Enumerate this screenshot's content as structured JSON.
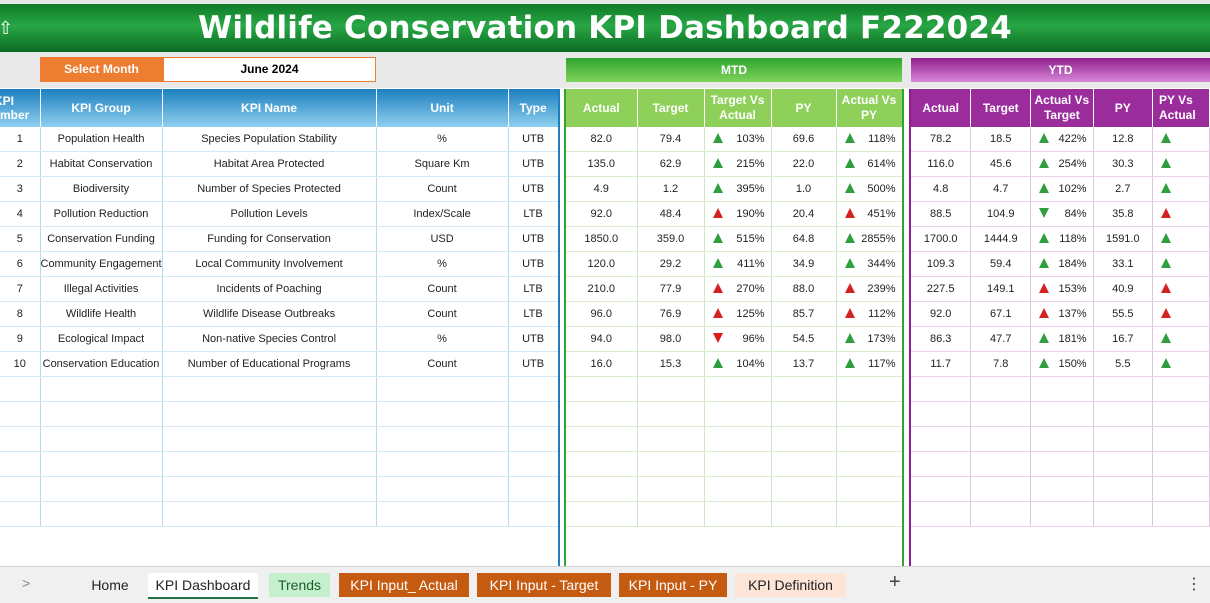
{
  "title": "Wildlife Conservation KPI Dashboard F222024",
  "controls": {
    "select_label": "Select Month",
    "select_value": "June 2024"
  },
  "sections": {
    "mtd": "MTD",
    "ytd": "YTD"
  },
  "left_headers": {
    "num": "KPI Number",
    "num_line1": "KPI",
    "num_line2": "Number",
    "group": "KPI Group",
    "name": "KPI Name",
    "unit": "Unit",
    "type": "Type"
  },
  "mtd_headers": {
    "actual": "Actual",
    "target": "Target",
    "tva_1": "Target Vs",
    "tva_2": "Actual",
    "avp_1": "Actual Vs",
    "avp_2": "PY",
    "py": "PY"
  },
  "ytd_headers": {
    "actual": "Actual",
    "target": "Target",
    "avt_1": "Actual Vs",
    "avt_2": "Target",
    "py": "PY",
    "pyva_1": "PY Vs",
    "pyva_2": "Actual"
  },
  "rows": [
    {
      "num": "1",
      "group": "Population Health",
      "name": "Species Population Stability",
      "unit": "%",
      "type": "UTB",
      "m_actual": "82.0",
      "m_target": "79.4",
      "m_tva": "103%",
      "m_tva_dir": "up",
      "m_py": "69.6",
      "m_avp": "118%",
      "m_avp_dir": "up",
      "y_actual": "78.2",
      "y_target": "18.5",
      "y_avt": "422%",
      "y_avt_dir": "up",
      "y_py": "12.8",
      "y_pva_dir": "up"
    },
    {
      "num": "2",
      "group": "Habitat Conservation",
      "name": "Habitat Area Protected",
      "unit": "Square Km",
      "type": "UTB",
      "m_actual": "135.0",
      "m_target": "62.9",
      "m_tva": "215%",
      "m_tva_dir": "up",
      "m_py": "22.0",
      "m_avp": "614%",
      "m_avp_dir": "up",
      "y_actual": "116.0",
      "y_target": "45.6",
      "y_avt": "254%",
      "y_avt_dir": "up",
      "y_py": "30.3",
      "y_pva_dir": "up"
    },
    {
      "num": "3",
      "group": "Biodiversity",
      "name": "Number of Species Protected",
      "unit": "Count",
      "type": "UTB",
      "m_actual": "4.9",
      "m_target": "1.2",
      "m_tva": "395%",
      "m_tva_dir": "up",
      "m_py": "1.0",
      "m_avp": "500%",
      "m_avp_dir": "up",
      "y_actual": "4.8",
      "y_target": "4.7",
      "y_avt": "102%",
      "y_avt_dir": "up",
      "y_py": "2.7",
      "y_pva_dir": "up"
    },
    {
      "num": "4",
      "group": "Pollution Reduction",
      "name": "Pollution Levels",
      "unit": "Index/Scale",
      "type": "LTB",
      "m_actual": "92.0",
      "m_target": "48.4",
      "m_tva": "190%",
      "m_tva_dir": "up-red",
      "m_py": "20.4",
      "m_avp": "451%",
      "m_avp_dir": "up-red",
      "y_actual": "88.5",
      "y_target": "104.9",
      "y_avt": "84%",
      "y_avt_dir": "down-green",
      "y_py": "35.8",
      "y_pva_dir": "up-red"
    },
    {
      "num": "5",
      "group": "Conservation Funding",
      "name": "Funding for Conservation",
      "unit": "USD",
      "type": "UTB",
      "m_actual": "1850.0",
      "m_target": "359.0",
      "m_tva": "515%",
      "m_tva_dir": "up",
      "m_py": "64.8",
      "m_avp": "2855%",
      "m_avp_dir": "up",
      "y_actual": "1700.0",
      "y_target": "1444.9",
      "y_avt": "118%",
      "y_avt_dir": "up",
      "y_py": "1591.0",
      "y_pva_dir": "up"
    },
    {
      "num": "6",
      "group": "Community Engagement",
      "name": "Local Community Involvement",
      "unit": "%",
      "type": "UTB",
      "m_actual": "120.0",
      "m_target": "29.2",
      "m_tva": "411%",
      "m_tva_dir": "up",
      "m_py": "34.9",
      "m_avp": "344%",
      "m_avp_dir": "up",
      "y_actual": "109.3",
      "y_target": "59.4",
      "y_avt": "184%",
      "y_avt_dir": "up",
      "y_py": "33.1",
      "y_pva_dir": "up"
    },
    {
      "num": "7",
      "group": "Illegal Activities",
      "name": "Incidents of Poaching",
      "unit": "Count",
      "type": "LTB",
      "m_actual": "210.0",
      "m_target": "77.9",
      "m_tva": "270%",
      "m_tva_dir": "up-red",
      "m_py": "88.0",
      "m_avp": "239%",
      "m_avp_dir": "up-red",
      "y_actual": "227.5",
      "y_target": "149.1",
      "y_avt": "153%",
      "y_avt_dir": "up-red",
      "y_py": "40.9",
      "y_pva_dir": "up-red"
    },
    {
      "num": "8",
      "group": "Wildlife Health",
      "name": "Wildlife Disease Outbreaks",
      "unit": "Count",
      "type": "LTB",
      "m_actual": "96.0",
      "m_target": "76.9",
      "m_tva": "125%",
      "m_tva_dir": "up-red",
      "m_py": "85.7",
      "m_avp": "112%",
      "m_avp_dir": "up-red",
      "y_actual": "92.0",
      "y_target": "67.1",
      "y_avt": "137%",
      "y_avt_dir": "up-red",
      "y_py": "55.5",
      "y_pva_dir": "up-red"
    },
    {
      "num": "9",
      "group": "Ecological Impact",
      "name": "Non-native Species Control",
      "unit": "%",
      "type": "UTB",
      "m_actual": "94.0",
      "m_target": "98.0",
      "m_tva": "96%",
      "m_tva_dir": "down-red",
      "m_py": "54.5",
      "m_avp": "173%",
      "m_avp_dir": "up",
      "y_actual": "86.3",
      "y_target": "47.7",
      "y_avt": "181%",
      "y_avt_dir": "up",
      "y_py": "16.7",
      "y_pva_dir": "up"
    },
    {
      "num": "10",
      "group": "Conservation Education",
      "name": "Number of Educational Programs",
      "unit": "Count",
      "type": "UTB",
      "m_actual": "16.0",
      "m_target": "15.3",
      "m_tva": "104%",
      "m_tva_dir": "up",
      "m_py": "13.7",
      "m_avp": "117%",
      "m_avp_dir": "up",
      "y_actual": "11.7",
      "y_target": "7.8",
      "y_avt": "150%",
      "y_avt_dir": "up",
      "y_py": "5.5",
      "y_pva_dir": "up"
    }
  ],
  "tabs": {
    "home": "Home",
    "dashboard": "KPI Dashboard",
    "trends": "Trends",
    "input_actual": "KPI Input_ Actual",
    "input_target": "KPI Input - Target",
    "input_py": "KPI Input - PY",
    "definition": "KPI Definition"
  },
  "colors": {
    "title_green": "#1a8c35",
    "mtd_green": "#8ed05a",
    "ytd_purple": "#9b2c9b",
    "header_blue": "#1c7fbf",
    "select_orange": "#ed7d31"
  }
}
